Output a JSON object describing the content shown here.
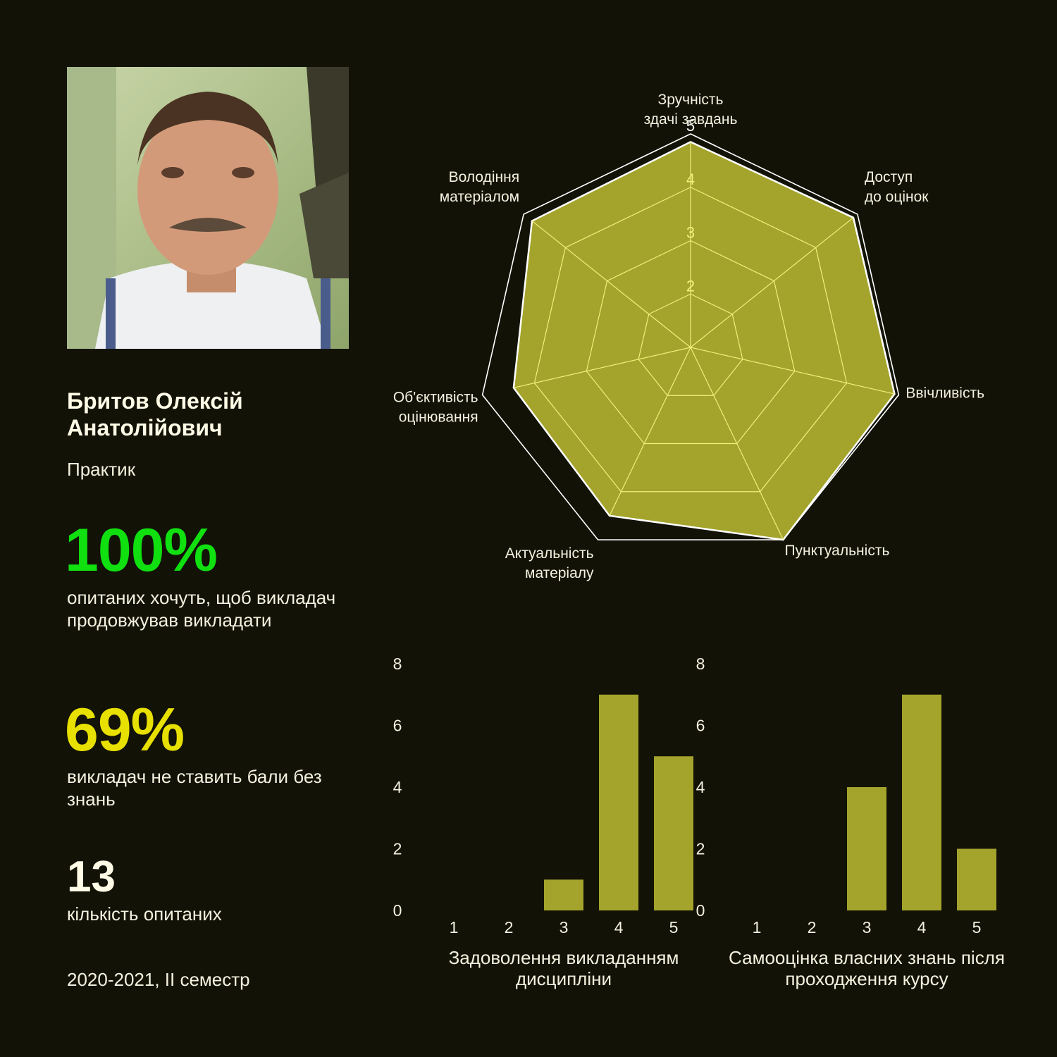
{
  "profile": {
    "name": "Бритов Олексій Анатолійович",
    "role": "Практик",
    "period": "2020-2021, II семестр"
  },
  "stats": [
    {
      "value": "100%",
      "label": "опитаних хочуть, щоб викладач продовжував викладати",
      "color": "#10e010"
    },
    {
      "value": "69%",
      "label": "викладач не ставить бали без знань",
      "color": "#e8e000"
    },
    {
      "value": "13",
      "label": "кількість опитаних",
      "color": "#fffbe6"
    }
  ],
  "colors": {
    "background": "#121207",
    "fill": "#a4a42c",
    "grid": "#f0ef7a",
    "text": "#f4f1de"
  },
  "chart_data": [
    {
      "type": "radar",
      "axes": [
        [
          "Зручність",
          "здачі завдань"
        ],
        [
          "Доступ",
          "до оцінок"
        ],
        [
          "Ввічливість"
        ],
        [
          "Пунктуальність"
        ],
        [
          "Актуальність",
          "матеріалу"
        ],
        [
          "Об'єктивість",
          "оцінювання"
        ],
        [
          "Володіння",
          "матеріалом"
        ]
      ],
      "values": [
        4.85,
        4.9,
        4.92,
        5.0,
        4.5,
        4.4,
        4.8
      ],
      "range": [
        1,
        5
      ],
      "tick_labels": [
        "2",
        "3",
        "4",
        "5"
      ]
    },
    {
      "type": "bar",
      "title": "Задоволення викладанням дисципліни",
      "categories": [
        "1",
        "2",
        "3",
        "4",
        "5"
      ],
      "values": [
        0,
        0,
        1,
        7,
        5
      ],
      "ylim": [
        0,
        8
      ],
      "yticks": [
        "0",
        "2",
        "4",
        "6",
        "8"
      ]
    },
    {
      "type": "bar",
      "title": "Самооцінка власних знань після проходження курсу",
      "categories": [
        "1",
        "2",
        "3",
        "4",
        "5"
      ],
      "values": [
        0,
        0,
        4,
        7,
        2
      ],
      "ylim": [
        0,
        8
      ],
      "yticks": [
        "0",
        "2",
        "4",
        "6",
        "8"
      ]
    }
  ]
}
